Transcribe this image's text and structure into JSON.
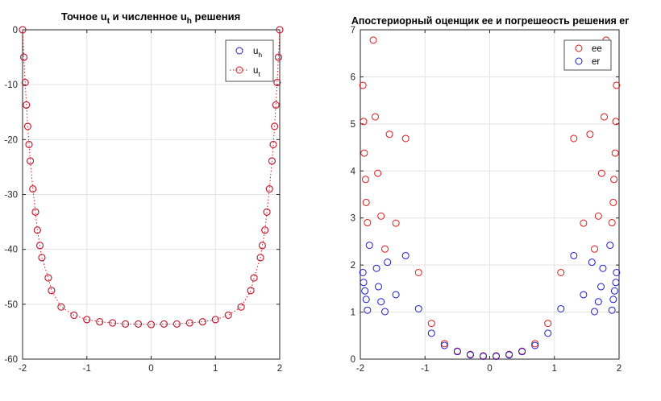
{
  "chart_data": [
    {
      "type": "scatter",
      "title_parts": [
        "Точное u",
        "t",
        " и численное u",
        "h",
        " решения"
      ],
      "xlabel": "",
      "ylabel": "",
      "xlim": [
        -2,
        2
      ],
      "ylim": [
        -60,
        0
      ],
      "xticks": [
        -2,
        -1,
        0,
        1,
        2
      ],
      "yticks": [
        0,
        -10,
        -20,
        -30,
        -40,
        -50,
        -60
      ],
      "grid": true,
      "legend_position": "top-right",
      "x": [
        -2,
        -1.98,
        -1.96,
        -1.94,
        -1.92,
        -1.9,
        -1.88,
        -1.84,
        -1.8,
        -1.77,
        -1.73,
        -1.7,
        -1.6,
        -1.55,
        -1.4,
        -1.2,
        -1,
        -0.8,
        -0.6,
        -0.4,
        -0.2,
        0,
        0.2,
        0.4,
        0.6,
        0.8,
        1,
        1.2,
        1.4,
        1.55,
        1.6,
        1.7,
        1.73,
        1.77,
        1.8,
        1.84,
        1.88,
        1.9,
        1.92,
        1.94,
        1.96,
        1.98,
        2
      ],
      "series": [
        {
          "name": "u_h",
          "legend_main": "u",
          "legend_sub": "h",
          "marker": "circle",
          "line": "none",
          "color": "#1a1acc",
          "y": [
            0,
            -5,
            -9.6,
            -13.7,
            -17.6,
            -20.9,
            -23.9,
            -29,
            -33.2,
            -36.5,
            -39.3,
            -41.5,
            -45.2,
            -47.5,
            -50.5,
            -52,
            -52.8,
            -53.2,
            -53.4,
            -53.6,
            -53.6,
            -53.7,
            -53.6,
            -53.6,
            -53.4,
            -53.2,
            -52.8,
            -52,
            -50.5,
            -47.5,
            -45.2,
            -41.5,
            -39.3,
            -36.5,
            -33.2,
            -29,
            -23.9,
            -20.9,
            -17.6,
            -13.7,
            -9.6,
            -5,
            0
          ]
        },
        {
          "name": "u_t",
          "legend_main": "u",
          "legend_sub": "t",
          "marker": "circle",
          "line": "dotted",
          "color": "#e01818",
          "y": [
            0,
            -5,
            -9.6,
            -13.7,
            -17.6,
            -20.9,
            -23.9,
            -29,
            -33.2,
            -36.5,
            -39.3,
            -41.5,
            -45.2,
            -47.5,
            -50.5,
            -52,
            -52.8,
            -53.2,
            -53.4,
            -53.6,
            -53.6,
            -53.7,
            -53.6,
            -53.6,
            -53.4,
            -53.2,
            -52.8,
            -52,
            -50.5,
            -47.5,
            -45.2,
            -41.5,
            -39.3,
            -36.5,
            -33.2,
            -29,
            -23.9,
            -20.9,
            -17.6,
            -13.7,
            -9.6,
            -5,
            0
          ]
        }
      ]
    },
    {
      "type": "scatter",
      "title": "Апостериорный  оценщик ee и погрешеость решения er",
      "xlabel": "",
      "ylabel": "",
      "xlim": [
        -2,
        2
      ],
      "ylim": [
        0,
        7
      ],
      "xticks": [
        -2,
        -1,
        0,
        1,
        2
      ],
      "yticks": [
        0,
        1,
        2,
        3,
        4,
        5,
        6,
        7
      ],
      "grid": true,
      "legend_position": "top-right",
      "series": [
        {
          "name": "ee",
          "marker": "circle",
          "line": "none",
          "color": "#e01818",
          "x": [
            -1.8,
            -1.96,
            -1.95,
            -1.77,
            -1.94,
            -1.55,
            -1.3,
            -1.92,
            -1.73,
            -1.91,
            -1.68,
            -1.89,
            -1.45,
            -1.62,
            -1.1,
            -0.9,
            -0.7,
            -0.5,
            -0.3,
            -0.1,
            0.1,
            0.3,
            0.5,
            0.7,
            0.9,
            1.1,
            1.62,
            1.45,
            1.89,
            1.68,
            1.91,
            1.73,
            1.92,
            1.3,
            1.55,
            1.94,
            1.77,
            1.95,
            1.96,
            1.8
          ],
          "y": [
            6.78,
            5.82,
            5.05,
            5.15,
            4.38,
            4.78,
            4.69,
            3.82,
            3.95,
            3.33,
            3.04,
            2.9,
            2.89,
            2.34,
            1.84,
            0.76,
            0.33,
            0.17,
            0.1,
            0.07,
            0.07,
            0.1,
            0.17,
            0.33,
            0.76,
            1.84,
            2.34,
            2.89,
            2.9,
            3.04,
            3.33,
            3.95,
            3.82,
            4.69,
            4.78,
            4.38,
            5.15,
            5.05,
            5.82,
            6.78
          ]
        },
        {
          "name": "er",
          "marker": "circle",
          "line": "none",
          "color": "#1a1acc",
          "x": [
            -1.86,
            -1.3,
            -1.75,
            -1.58,
            -1.96,
            -1.72,
            -1.95,
            -1.45,
            -1.93,
            -1.68,
            -1.91,
            -1.1,
            -1.89,
            -1.62,
            -0.9,
            -0.7,
            -0.5,
            -0.3,
            -0.1,
            0.1,
            0.3,
            0.5,
            0.7,
            0.9,
            1.62,
            1.89,
            1.1,
            1.91,
            1.68,
            1.93,
            1.45,
            1.95,
            1.72,
            1.96,
            1.58,
            1.75,
            1.3,
            1.86
          ],
          "y": [
            2.42,
            2.2,
            1.93,
            2.06,
            1.84,
            1.54,
            1.63,
            1.37,
            1.45,
            1.22,
            1.27,
            1.07,
            1.04,
            1.01,
            0.55,
            0.29,
            0.16,
            0.09,
            0.06,
            0.06,
            0.09,
            0.16,
            0.29,
            0.55,
            1.01,
            1.04,
            1.07,
            1.27,
            1.22,
            1.45,
            1.37,
            1.63,
            1.54,
            1.84,
            2.06,
            1.93,
            2.2,
            2.42
          ]
        }
      ]
    }
  ]
}
